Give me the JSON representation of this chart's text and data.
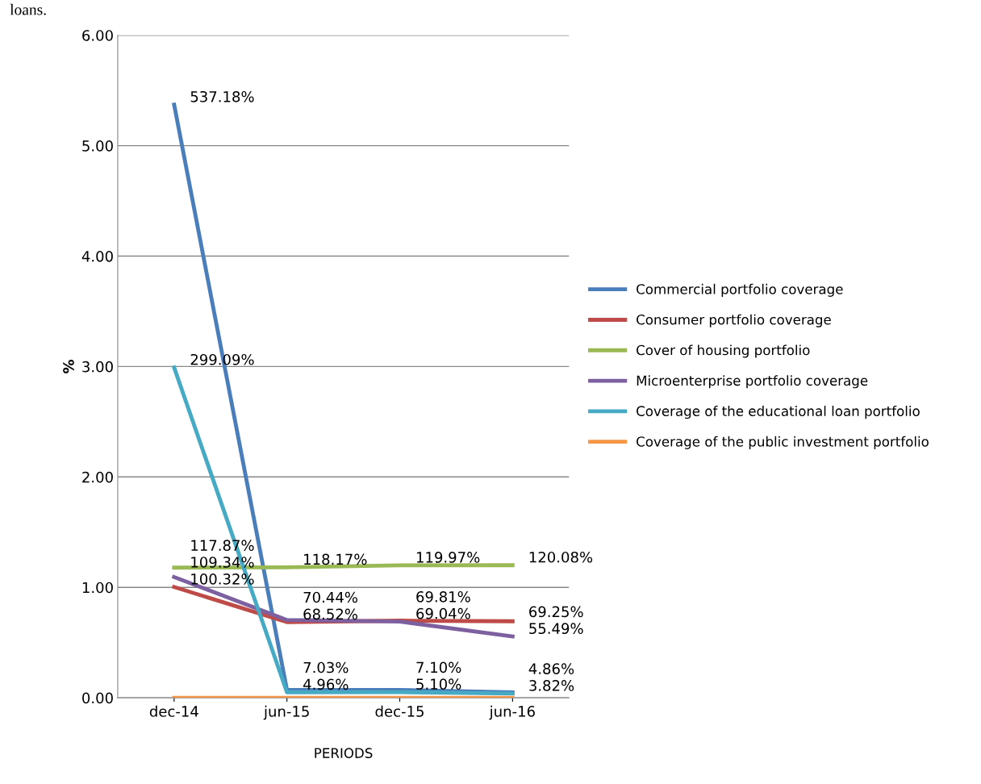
{
  "chart_data": {
    "type": "line",
    "xlabel": "PERIODS",
    "ylabel": "%",
    "annotations": [
      "loans."
    ],
    "categories": [
      "dec-14",
      "jun-15",
      "dec-15",
      "jun-16"
    ],
    "series": [
      {
        "name": "Commercial portfolio coverage",
        "color": "#4a7ebb",
        "values": [
          5.3718,
          0.0703,
          0.071,
          0.0486
        ],
        "value_labels": [
          "537.18%",
          "7.03%",
          "7.10%",
          "4.86%"
        ]
      },
      {
        "name": "Consumer portfolio coverage",
        "color": "#be4b48",
        "values": [
          1.0032,
          0.6852,
          0.6981,
          0.6925
        ],
        "value_labels": [
          "100.32%",
          "68.52%",
          "69.81%",
          "69.25%"
        ]
      },
      {
        "name": "Cover of housing portfolio",
        "color": "#98b954",
        "values": [
          1.1787,
          1.1817,
          1.1997,
          1.2008
        ],
        "value_labels": [
          "117.87%",
          "118.17%",
          "119.97%",
          "120.08%"
        ]
      },
      {
        "name": "Microenterprise portfolio coverage",
        "color": "#7d60a0",
        "values": [
          1.0934,
          0.7044,
          0.6904,
          0.5549
        ],
        "value_labels": [
          "109.34%",
          "70.44%",
          "69.04%",
          "55.49%"
        ]
      },
      {
        "name": "Coverage of the educational loan portfolio",
        "color": "#46aac5",
        "values": [
          2.9909,
          0.0496,
          0.051,
          0.0382
        ],
        "value_labels": [
          "299.09%",
          "4.96%",
          "5.10%",
          "3.82%"
        ]
      },
      {
        "name": "Coverage of the public investment portfolio",
        "color": "#f79646",
        "values": [
          0,
          0,
          0,
          0
        ]
      }
    ],
    "ylim": [
      0,
      6
    ],
    "yticks": [
      {
        "value": 0,
        "label": "0.00"
      },
      {
        "value": 1,
        "label": "1.00"
      },
      {
        "value": 2,
        "label": "2.00"
      },
      {
        "value": 3,
        "label": "3.00"
      },
      {
        "value": 4,
        "label": "4.00"
      },
      {
        "value": 5,
        "label": "5.00"
      },
      {
        "value": 6,
        "label": "6.00"
      }
    ],
    "grid": "y",
    "legend": "right",
    "marker": "none",
    "line_style": "solid"
  }
}
